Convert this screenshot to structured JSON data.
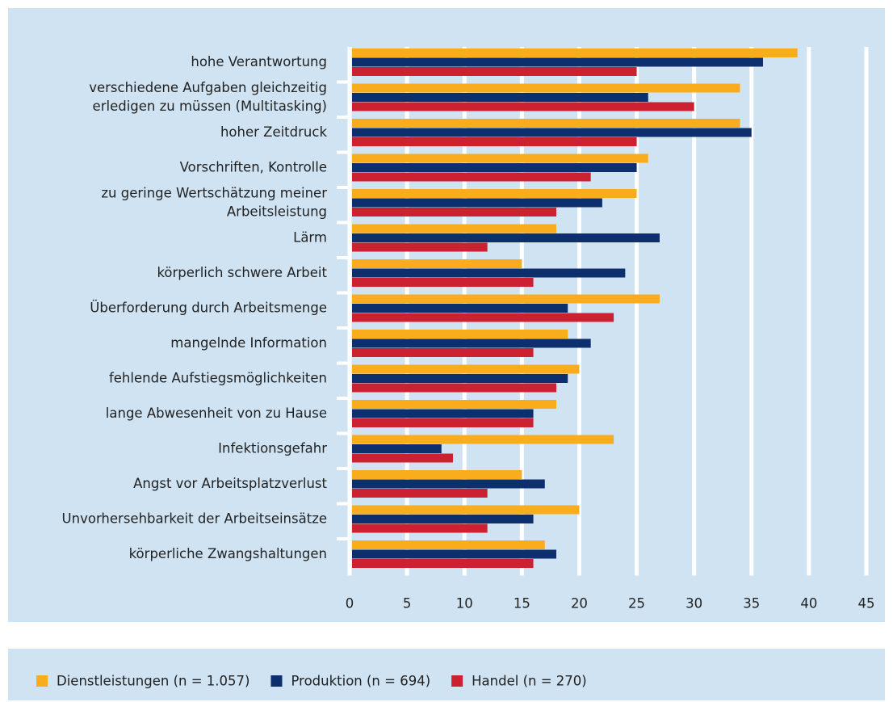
{
  "chart_data": {
    "type": "bar",
    "orientation": "horizontal",
    "categories": [
      [
        "hohe Verantwortung"
      ],
      [
        "verschiedene Aufgaben gleichzeitig",
        "erledigen zu müssen (Multitasking)"
      ],
      [
        "hoher Zeitdruck"
      ],
      [
        "Vorschriften, Kontrolle"
      ],
      [
        "zu geringe Wertschätzung  meiner",
        "Arbeitsleistung"
      ],
      [
        "Lärm"
      ],
      [
        "körperlich schwere Arbeit"
      ],
      [
        "Überforderung durch Arbeitsmenge"
      ],
      [
        "mangelnde Information"
      ],
      [
        "fehlende Aufstiegsmöglichkeiten"
      ],
      [
        "lange Abwesenheit von zu Hause"
      ],
      [
        "Infektionsgefahr"
      ],
      [
        "Angst vor Arbeitsplatzverlust"
      ],
      [
        "Unvorhersehbarkeit der Arbeitseinsätze"
      ],
      [
        "körperliche Zwangshaltungen"
      ]
    ],
    "series": [
      {
        "name": "Dienstleistungen (n = 1.057)",
        "color": "#f9ad1d",
        "values": [
          39,
          34,
          34,
          26,
          25,
          18,
          15,
          27,
          19,
          20,
          18,
          23,
          15,
          20,
          17
        ]
      },
      {
        "name": "Produktion (n = 694)",
        "color": "#0d2f6e",
        "values": [
          36,
          26,
          35,
          25,
          22,
          27,
          24,
          19,
          21,
          19,
          16,
          8,
          17,
          16,
          18
        ]
      },
      {
        "name": "Handel (n = 270)",
        "color": "#cc2131",
        "values": [
          25,
          30,
          25,
          21,
          18,
          12,
          16,
          23,
          16,
          18,
          16,
          9,
          12,
          12,
          16
        ]
      }
    ],
    "xlim": [
      0,
      45
    ],
    "xticks": [
      0,
      5,
      10,
      15,
      20,
      25,
      30,
      35,
      40,
      45
    ],
    "grid": true,
    "legend": "bottom"
  }
}
